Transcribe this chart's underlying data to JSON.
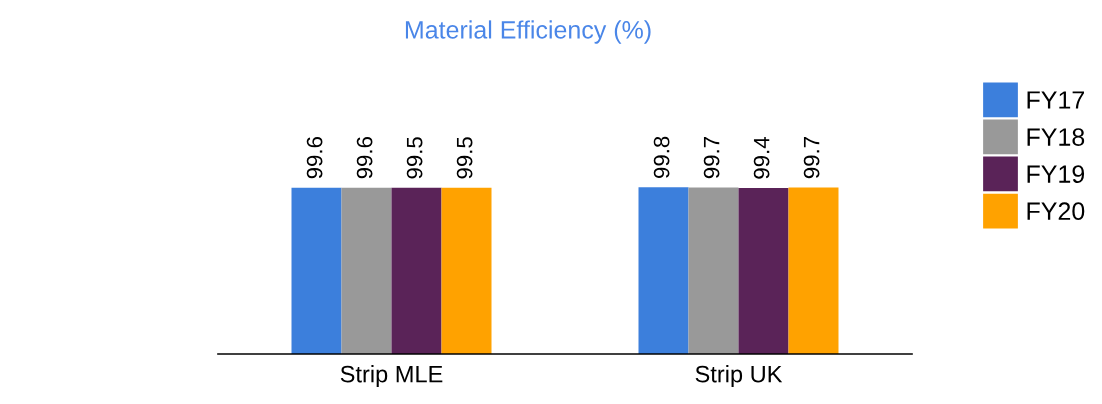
{
  "chart_data": {
    "type": "bar",
    "title": "Material Efficiency (%)",
    "categories": [
      "Strip MLE",
      "Strip UK"
    ],
    "series": [
      {
        "name": "FY17",
        "color": "#3c7fdc",
        "values": [
          99.6,
          99.8
        ]
      },
      {
        "name": "FY18",
        "color": "#999999",
        "values": [
          99.6,
          99.7
        ]
      },
      {
        "name": "FY19",
        "color": "#5a2358",
        "values": [
          99.5,
          99.4
        ]
      },
      {
        "name": "FY20",
        "color": "#ffa200",
        "values": [
          99.5,
          99.7
        ]
      }
    ],
    "data_labels": true,
    "grid": false,
    "legend": "right",
    "tick_labels": "x"
  }
}
